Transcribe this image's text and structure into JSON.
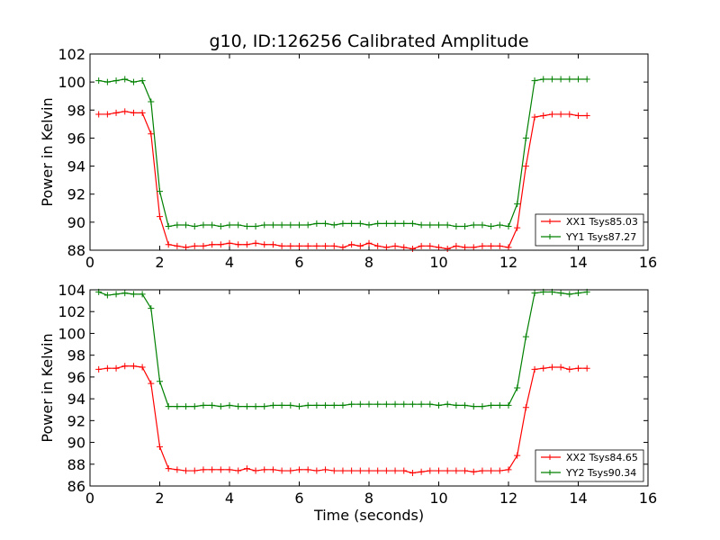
{
  "chart_data": [
    {
      "type": "line",
      "title": "g10, ID:126256 Calibrated Amplitude",
      "xlabel": "",
      "ylabel": "Power in Kelvin",
      "xlim": [
        0,
        16
      ],
      "ylim": [
        88,
        102
      ],
      "xticks": [
        0,
        2,
        4,
        6,
        8,
        10,
        12,
        14,
        16
      ],
      "yticks": [
        88,
        90,
        92,
        94,
        96,
        98,
        100,
        102
      ],
      "grid": false,
      "legend_position": "lower-right",
      "x": [
        0.25,
        0.5,
        0.75,
        1.0,
        1.25,
        1.5,
        1.75,
        2.0,
        2.25,
        2.5,
        2.75,
        3.0,
        3.25,
        3.5,
        3.75,
        4.0,
        4.25,
        4.5,
        4.75,
        5.0,
        5.25,
        5.5,
        5.75,
        6.0,
        6.25,
        6.5,
        6.75,
        7.0,
        7.25,
        7.5,
        7.75,
        8.0,
        8.25,
        8.5,
        8.75,
        9.0,
        9.25,
        9.5,
        9.75,
        10.0,
        10.25,
        10.5,
        10.75,
        11.0,
        11.25,
        11.5,
        11.75,
        12.0,
        12.25,
        12.5,
        12.75,
        13.0,
        13.25,
        13.5,
        13.75,
        14.0,
        14.25
      ],
      "series": [
        {
          "name": "XX1 Tsys85.03",
          "color": "#ff0000",
          "values": [
            97.7,
            97.7,
            97.8,
            97.9,
            97.8,
            97.8,
            96.3,
            90.4,
            88.4,
            88.3,
            88.2,
            88.3,
            88.3,
            88.4,
            88.4,
            88.5,
            88.4,
            88.4,
            88.5,
            88.4,
            88.4,
            88.3,
            88.3,
            88.3,
            88.3,
            88.3,
            88.3,
            88.3,
            88.2,
            88.4,
            88.3,
            88.5,
            88.3,
            88.2,
            88.3,
            88.2,
            88.1,
            88.3,
            88.3,
            88.2,
            88.1,
            88.3,
            88.2,
            88.2,
            88.3,
            88.3,
            88.3,
            88.2,
            89.6,
            94.0,
            97.5,
            97.6,
            97.7,
            97.7,
            97.7,
            97.6,
            97.6
          ]
        },
        {
          "name": "YY1 Tsys87.27",
          "color": "#008000",
          "values": [
            100.1,
            100.0,
            100.1,
            100.2,
            100.0,
            100.1,
            98.6,
            92.2,
            89.7,
            89.8,
            89.8,
            89.7,
            89.8,
            89.8,
            89.7,
            89.8,
            89.8,
            89.7,
            89.7,
            89.8,
            89.8,
            89.8,
            89.8,
            89.8,
            89.8,
            89.9,
            89.9,
            89.8,
            89.9,
            89.9,
            89.9,
            89.8,
            89.9,
            89.9,
            89.9,
            89.9,
            89.9,
            89.8,
            89.8,
            89.8,
            89.8,
            89.7,
            89.7,
            89.8,
            89.8,
            89.7,
            89.8,
            89.7,
            91.3,
            96.0,
            100.1,
            100.2,
            100.2,
            100.2,
            100.2,
            100.2,
            100.2
          ]
        }
      ]
    },
    {
      "type": "line",
      "title": "",
      "xlabel": "Time (seconds)",
      "ylabel": "Power in Kelvin",
      "xlim": [
        0,
        16
      ],
      "ylim": [
        86,
        104
      ],
      "xticks": [
        0,
        2,
        4,
        6,
        8,
        10,
        12,
        14,
        16
      ],
      "yticks": [
        86,
        88,
        90,
        92,
        94,
        96,
        98,
        100,
        102,
        104
      ],
      "grid": false,
      "legend_position": "lower-right",
      "x": [
        0.25,
        0.5,
        0.75,
        1.0,
        1.25,
        1.5,
        1.75,
        2.0,
        2.25,
        2.5,
        2.75,
        3.0,
        3.25,
        3.5,
        3.75,
        4.0,
        4.25,
        4.5,
        4.75,
        5.0,
        5.25,
        5.5,
        5.75,
        6.0,
        6.25,
        6.5,
        6.75,
        7.0,
        7.25,
        7.5,
        7.75,
        8.0,
        8.25,
        8.5,
        8.75,
        9.0,
        9.25,
        9.5,
        9.75,
        10.0,
        10.25,
        10.5,
        10.75,
        11.0,
        11.25,
        11.5,
        11.75,
        12.0,
        12.25,
        12.5,
        12.75,
        13.0,
        13.25,
        13.5,
        13.75,
        14.0,
        14.25
      ],
      "series": [
        {
          "name": "XX2 Tsys84.65",
          "color": "#ff0000",
          "values": [
            96.7,
            96.8,
            96.8,
            97.0,
            97.0,
            96.9,
            95.4,
            89.6,
            87.6,
            87.5,
            87.4,
            87.4,
            87.5,
            87.5,
            87.5,
            87.5,
            87.4,
            87.6,
            87.4,
            87.5,
            87.5,
            87.4,
            87.4,
            87.5,
            87.5,
            87.4,
            87.5,
            87.4,
            87.4,
            87.4,
            87.4,
            87.4,
            87.4,
            87.4,
            87.4,
            87.4,
            87.2,
            87.3,
            87.4,
            87.4,
            87.4,
            87.4,
            87.4,
            87.3,
            87.4,
            87.4,
            87.4,
            87.5,
            88.8,
            93.2,
            96.7,
            96.8,
            96.9,
            96.9,
            96.7,
            96.8,
            96.8
          ]
        },
        {
          "name": "YY2 Tsys90.34",
          "color": "#008000",
          "values": [
            103.8,
            103.5,
            103.6,
            103.7,
            103.6,
            103.6,
            102.3,
            95.6,
            93.3,
            93.3,
            93.3,
            93.3,
            93.4,
            93.4,
            93.3,
            93.4,
            93.3,
            93.3,
            93.3,
            93.3,
            93.4,
            93.4,
            93.4,
            93.3,
            93.4,
            93.4,
            93.4,
            93.4,
            93.4,
            93.5,
            93.5,
            93.5,
            93.5,
            93.5,
            93.5,
            93.5,
            93.5,
            93.5,
            93.5,
            93.4,
            93.5,
            93.4,
            93.4,
            93.3,
            93.3,
            93.4,
            93.4,
            93.4,
            95.0,
            99.7,
            103.7,
            103.8,
            103.8,
            103.7,
            103.6,
            103.7,
            103.8
          ]
        }
      ]
    }
  ]
}
